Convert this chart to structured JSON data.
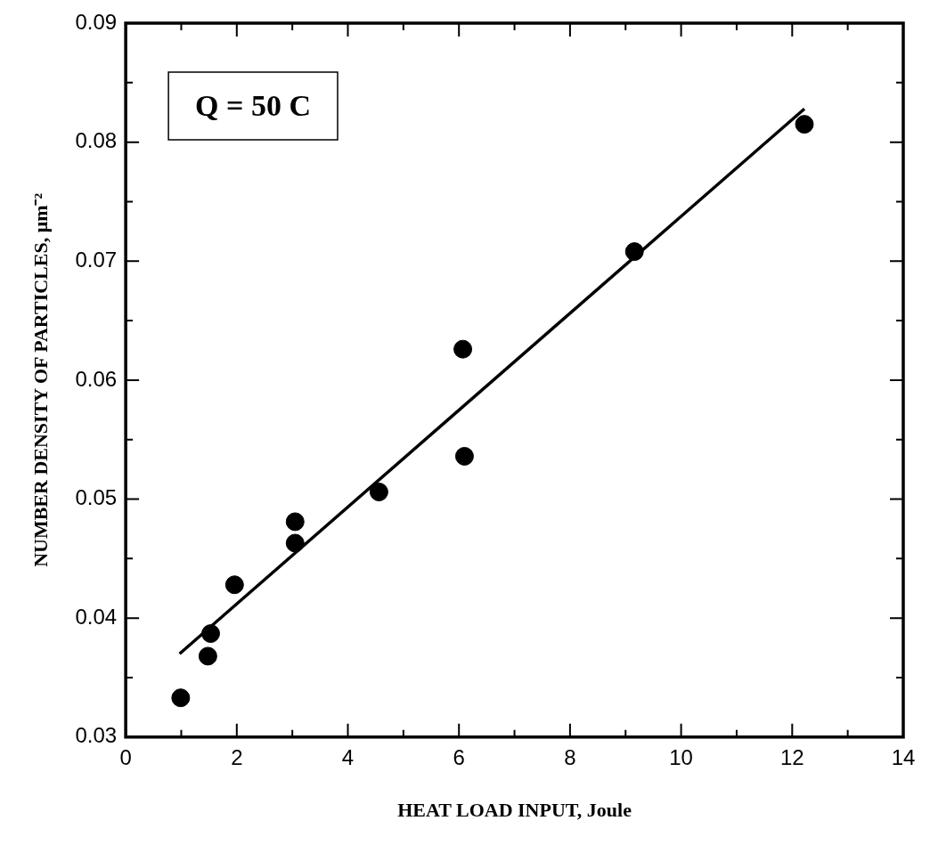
{
  "chart_data": {
    "type": "scatter",
    "xlabel": "HEAT LOAD INPUT, Joule",
    "ylabel": "NUMBER DENSITY OF PARTICLES, μm⁻²",
    "series": [
      {
        "type": "scatter",
        "color": "#000000",
        "marker": "circle",
        "x": [
          0.99,
          1.48,
          1.53,
          1.96,
          3.05,
          3.05,
          4.56,
          6.1,
          6.07,
          9.16,
          12.22
        ],
        "values": [
          0.0333,
          0.0368,
          0.0387,
          0.0428,
          0.0463,
          0.0481,
          0.0506,
          0.0536,
          0.0626,
          0.0708,
          0.0815
        ]
      },
      {
        "type": "line",
        "color": "#000000",
        "marker": "none",
        "line_style": "solid",
        "x": [
          0.97,
          12.22
        ],
        "values": [
          0.037,
          0.0828
        ]
      }
    ],
    "xlim": [
      0,
      14
    ],
    "xticks": [
      0,
      {
        "value": 1,
        "label": null
      },
      2,
      {
        "value": 3,
        "label": null
      },
      4,
      {
        "value": 5,
        "label": null
      },
      6,
      {
        "value": 7,
        "label": null
      },
      8,
      {
        "value": 9,
        "label": null
      },
      10,
      {
        "value": 11,
        "label": null
      },
      12,
      {
        "value": 13,
        "label": null
      },
      14
    ],
    "ylim": [
      0.03,
      0.09
    ],
    "yticks": [
      0.03,
      {
        "value": 0.035,
        "label": null
      },
      0.04,
      {
        "value": 0.045,
        "label": null
      },
      0.05,
      {
        "value": 0.055,
        "label": null
      },
      0.06,
      {
        "value": 0.065,
        "label": null
      },
      0.07,
      {
        "value": 0.075,
        "label": null
      },
      0.08,
      {
        "value": 0.085,
        "label": null
      },
      0.09
    ],
    "annotations": [
      "Q = 50 C"
    ],
    "grid": false,
    "legend": false
  }
}
